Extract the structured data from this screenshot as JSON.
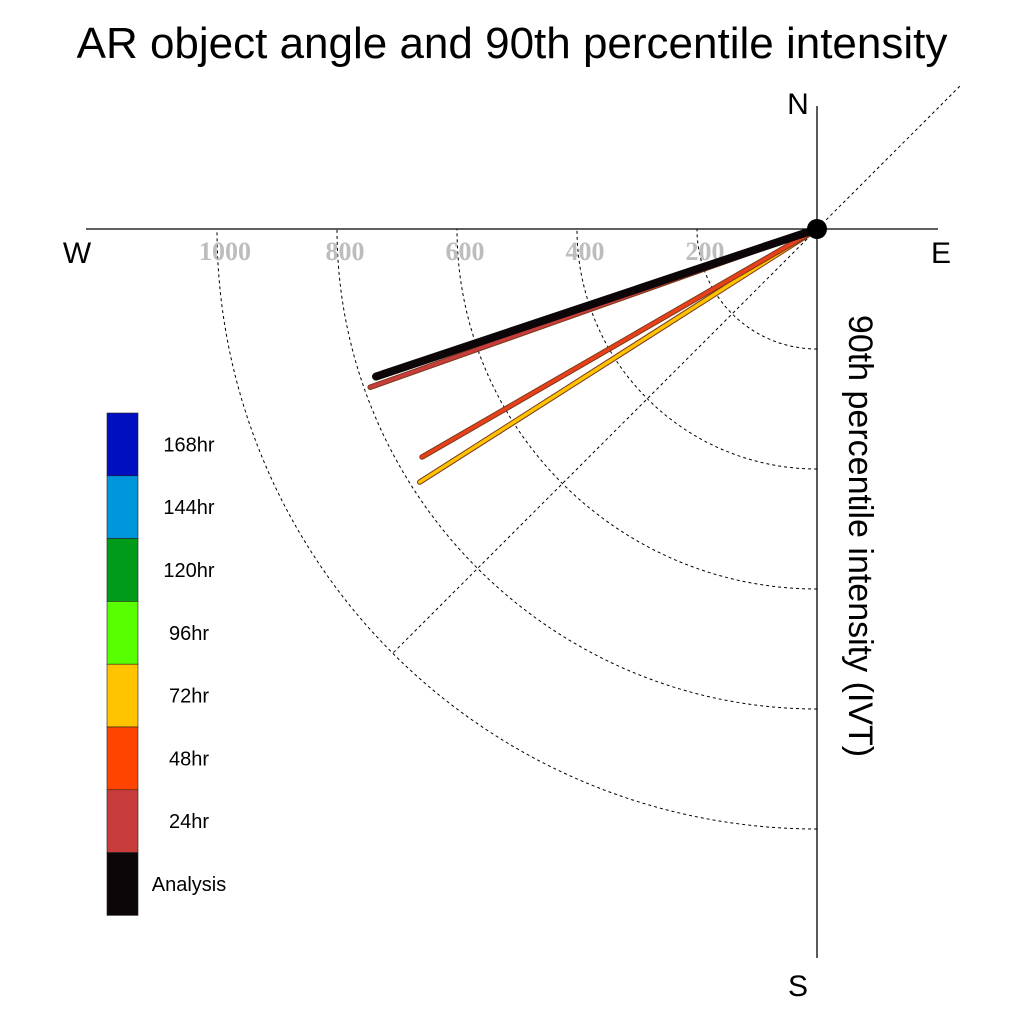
{
  "chart_data": {
    "type": "polar-vector",
    "title": "AR object angle and 90th percentile intensity",
    "radial_label": "90th percentile intensity (IVT)",
    "compass": {
      "north": "N",
      "south": "S",
      "east": "E",
      "west": "W"
    },
    "radial_ticks": [
      200,
      400,
      600,
      800,
      1000
    ],
    "radial_range": [
      0,
      1000
    ],
    "angle_convention": "degrees clockwise from north; 270 = west, 180 = south",
    "series": [
      {
        "name": "72hr",
        "color": "#FFC300",
        "angle_deg": 237.5,
        "intensity": 785
      },
      {
        "name": "48hr",
        "color": "#E8401B",
        "angle_deg": 240,
        "intensity": 760
      },
      {
        "name": "24hr",
        "color": "#C83C3C",
        "angle_deg": 250.5,
        "intensity": 790
      },
      {
        "name": "Analysis",
        "color": "#0d0608",
        "angle_deg": 251.5,
        "intensity": 775
      }
    ],
    "legend": [
      {
        "label": "168hr",
        "color": "#0010C0"
      },
      {
        "label": "144hr",
        "color": "#0096DC"
      },
      {
        "label": "120hr",
        "color": "#009B18"
      },
      {
        "label": "96hr",
        "color": "#58FF00"
      },
      {
        "label": "72hr",
        "color": "#FFC300"
      },
      {
        "label": "48hr",
        "color": "#FF4400"
      },
      {
        "label": "24hr",
        "color": "#C83C3C"
      },
      {
        "label": "Analysis",
        "color": "#0d0608"
      }
    ]
  }
}
